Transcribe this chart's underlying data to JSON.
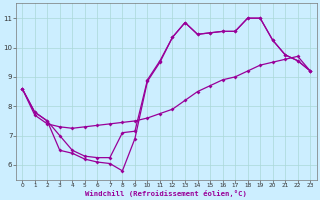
{
  "title": "",
  "xlabel": "Windchill (Refroidissement éolien,°C)",
  "ylabel": "",
  "bg_color": "#cceeff",
  "line_color": "#990099",
  "xlim": [
    -0.5,
    23.5
  ],
  "ylim": [
    5.5,
    11.5
  ],
  "yticks": [
    6,
    7,
    8,
    9,
    10,
    11
  ],
  "xticks": [
    0,
    1,
    2,
    3,
    4,
    5,
    6,
    7,
    8,
    9,
    10,
    11,
    12,
    13,
    14,
    15,
    16,
    17,
    18,
    19,
    20,
    21,
    22,
    23
  ],
  "line1_x": [
    0,
    1,
    2,
    3,
    4,
    5,
    6,
    7,
    8,
    9,
    10,
    11,
    12,
    13,
    14,
    15,
    16,
    17,
    18,
    19,
    20,
    21,
    22,
    23
  ],
  "line1_y": [
    8.6,
    7.8,
    7.5,
    6.5,
    6.4,
    6.2,
    6.1,
    6.05,
    5.8,
    6.9,
    8.85,
    9.5,
    10.35,
    10.85,
    10.45,
    10.5,
    10.55,
    10.55,
    11.0,
    11.0,
    10.25,
    9.75,
    9.55,
    9.2
  ],
  "line2_x": [
    0,
    1,
    2,
    3,
    4,
    5,
    6,
    7,
    8,
    9,
    10,
    11,
    12,
    13,
    14,
    15,
    16,
    17,
    18,
    19,
    20,
    21,
    22,
    23
  ],
  "line2_y": [
    8.6,
    7.8,
    7.5,
    7.0,
    6.5,
    6.3,
    6.25,
    6.25,
    7.1,
    7.15,
    8.9,
    9.55,
    10.35,
    10.85,
    10.45,
    10.5,
    10.55,
    10.55,
    11.0,
    11.0,
    10.25,
    9.75,
    9.55,
    9.2
  ],
  "line3_x": [
    0,
    1,
    2,
    3,
    4,
    5,
    6,
    7,
    8,
    9,
    10,
    11,
    12,
    13,
    14,
    15,
    16,
    17,
    18,
    19,
    20,
    21,
    22,
    23
  ],
  "line3_y": [
    8.6,
    7.7,
    7.4,
    7.3,
    7.25,
    7.3,
    7.35,
    7.4,
    7.45,
    7.5,
    7.6,
    7.75,
    7.9,
    8.2,
    8.5,
    8.7,
    8.9,
    9.0,
    9.2,
    9.4,
    9.5,
    9.6,
    9.7,
    9.2
  ]
}
